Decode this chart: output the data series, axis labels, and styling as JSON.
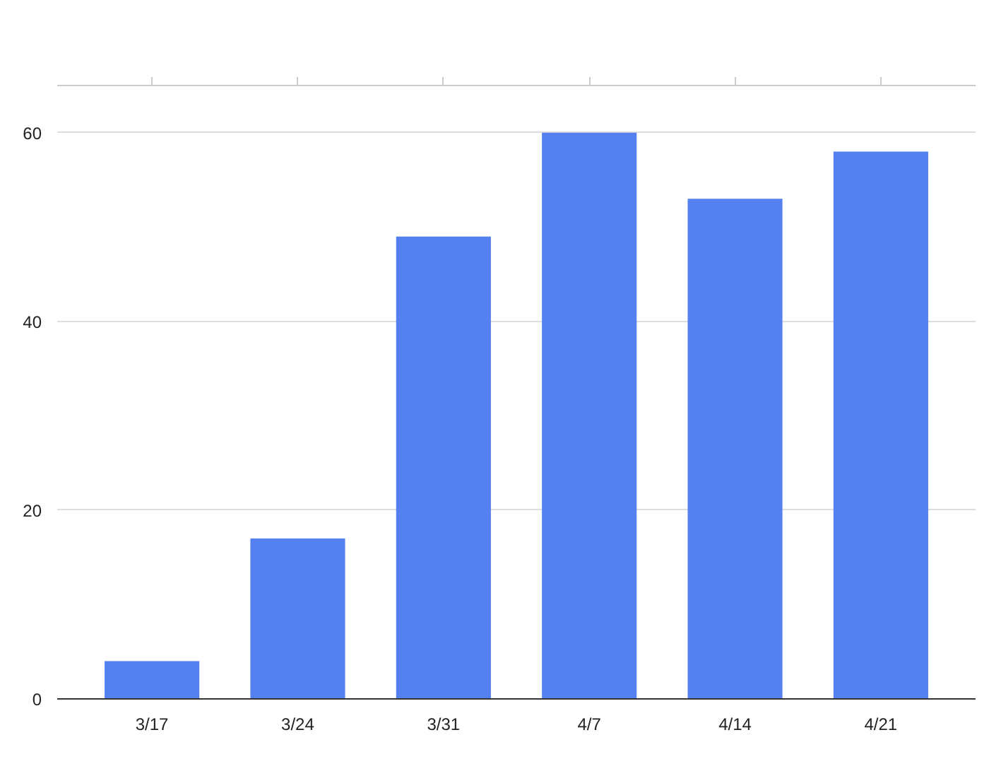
{
  "chart_data": {
    "type": "bar",
    "categories": [
      "3/17",
      "3/24",
      "3/31",
      "4/7",
      "4/14",
      "4/21"
    ],
    "values": [
      4,
      17,
      49,
      60,
      53,
      58
    ],
    "color": "#5580ef",
    "ylim": [
      0,
      65
    ],
    "yticks": [
      0,
      20,
      40,
      60
    ],
    "grid": "y"
  }
}
